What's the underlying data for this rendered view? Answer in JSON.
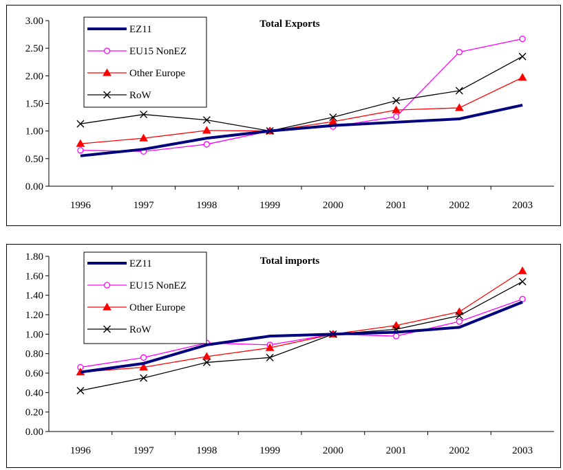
{
  "chart_data": [
    {
      "type": "line",
      "title": "Total Exports",
      "xlabel": "",
      "ylabel": "",
      "categories": [
        "1996",
        "1997",
        "1998",
        "1999",
        "2000",
        "2001",
        "2002",
        "2003"
      ],
      "ylim": [
        0,
        3
      ],
      "yticks": [
        "0.00",
        "0.50",
        "1.00",
        "1.50",
        "2.00",
        "2.50",
        "3.00"
      ],
      "ytick_values": [
        0,
        0.5,
        1.0,
        1.5,
        2.0,
        2.5,
        3.0
      ],
      "grid": false,
      "legend_position": "top-left",
      "series": [
        {
          "name": "EZ11",
          "color": "#00007f",
          "marker": "none",
          "values": [
            0.55,
            0.67,
            0.87,
            1.0,
            1.1,
            1.16,
            1.22,
            1.47
          ]
        },
        {
          "name": "EU15 NonEZ",
          "color": "#ff00ff",
          "marker": "circle",
          "values": [
            0.65,
            0.63,
            0.76,
            1.0,
            1.08,
            1.26,
            2.43,
            2.67
          ]
        },
        {
          "name": "Other Europe",
          "color": "#ff0000",
          "marker": "triangle",
          "values": [
            0.77,
            0.87,
            1.01,
            1.0,
            1.17,
            1.38,
            1.42,
            1.97
          ]
        },
        {
          "name": "RoW",
          "color": "#000000",
          "marker": "x",
          "values": [
            1.13,
            1.3,
            1.2,
            1.0,
            1.25,
            1.55,
            1.73,
            2.35
          ]
        }
      ]
    },
    {
      "type": "line",
      "title": "Total imports",
      "xlabel": "",
      "ylabel": "",
      "categories": [
        "1996",
        "1997",
        "1998",
        "1999",
        "2000",
        "2001",
        "2002",
        "2003"
      ],
      "ylim": [
        0,
        1.8
      ],
      "yticks": [
        "0.00",
        "0.20",
        "0.40",
        "0.60",
        "0.80",
        "1.00",
        "1.20",
        "1.40",
        "1.60",
        "1.80"
      ],
      "ytick_values": [
        0,
        0.2,
        0.4,
        0.6,
        0.8,
        1.0,
        1.2,
        1.4,
        1.6,
        1.8
      ],
      "grid": false,
      "legend_position": "top-left",
      "series": [
        {
          "name": "EZ11",
          "color": "#00007f",
          "marker": "none",
          "values": [
            0.61,
            0.7,
            0.89,
            0.98,
            1.0,
            1.02,
            1.07,
            1.33
          ]
        },
        {
          "name": "EU15 NonEZ",
          "color": "#ff00ff",
          "marker": "circle",
          "values": [
            0.66,
            0.76,
            0.91,
            0.89,
            1.0,
            0.98,
            1.13,
            1.36
          ]
        },
        {
          "name": "Other Europe",
          "color": "#ff0000",
          "marker": "triangle",
          "values": [
            0.61,
            0.66,
            0.77,
            0.86,
            1.0,
            1.09,
            1.23,
            1.65
          ]
        },
        {
          "name": "RoW",
          "color": "#000000",
          "marker": "x",
          "values": [
            0.42,
            0.55,
            0.71,
            0.76,
            1.0,
            1.05,
            1.19,
            1.54
          ]
        }
      ]
    }
  ]
}
